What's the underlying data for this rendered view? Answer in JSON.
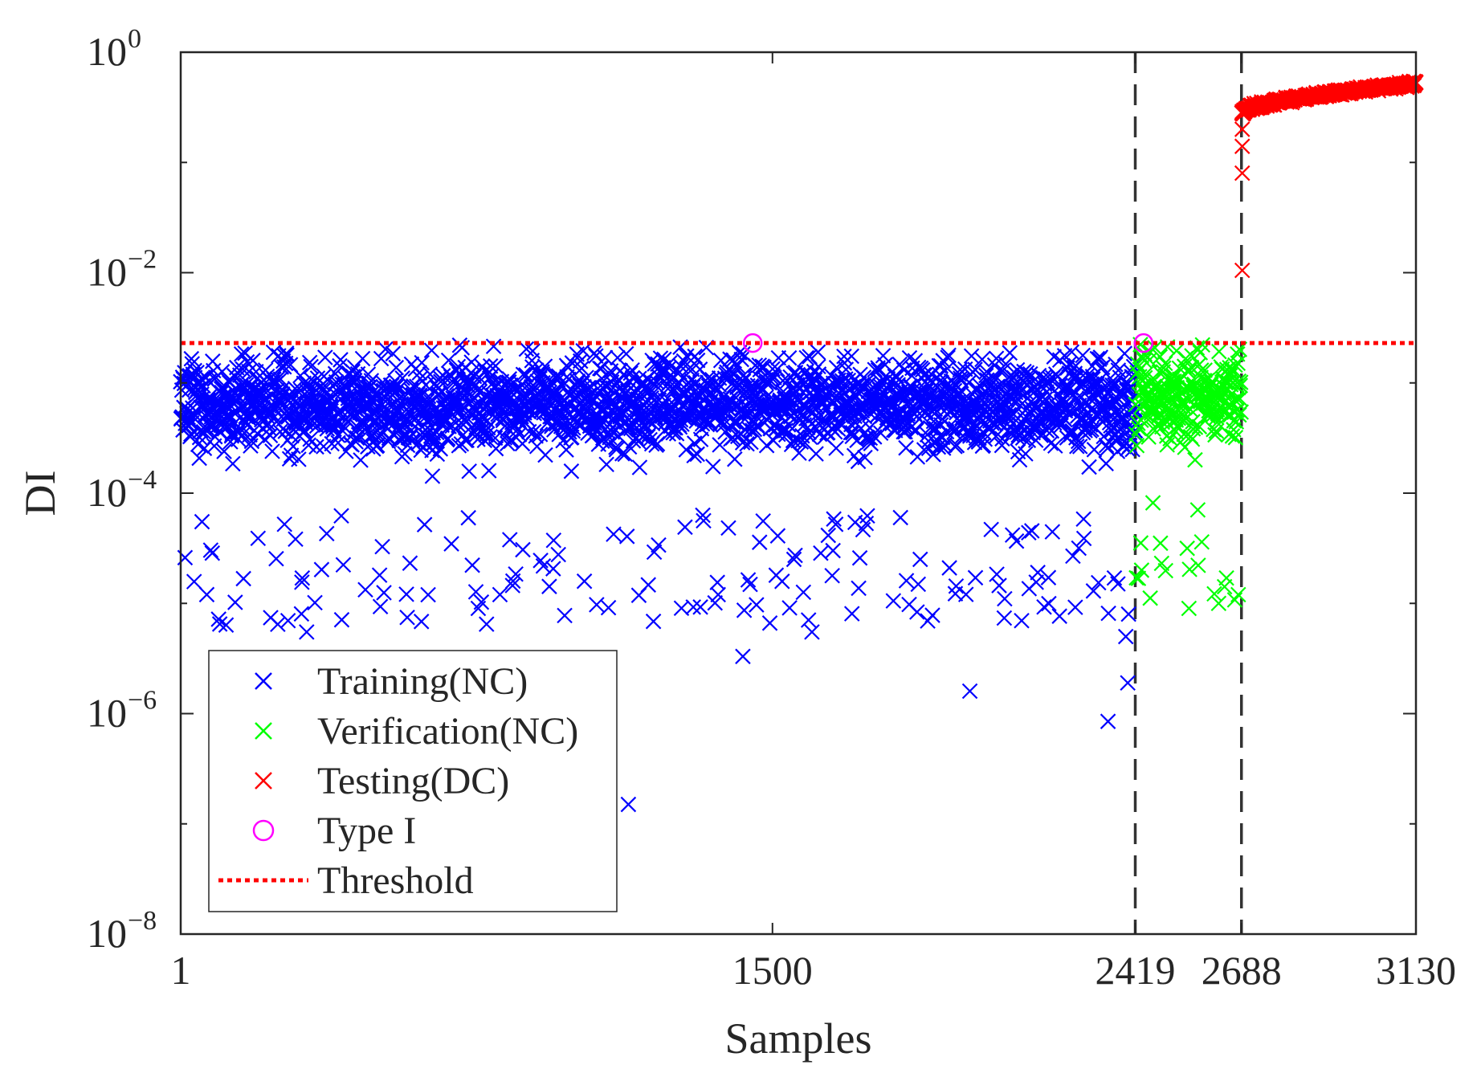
{
  "chart_data": {
    "type": "scatter",
    "title": "",
    "xlabel": "Samples",
    "ylabel": "DI",
    "xlim": [
      1,
      3130
    ],
    "ylim_log10": [
      -8,
      0
    ],
    "y_scale": "log",
    "grid": false,
    "legend_position": "bottom-left",
    "x_ticks": [
      1,
      1500,
      2419,
      2688,
      3130
    ],
    "x_tick_labels": [
      "1",
      "1500",
      "2419",
      "2688",
      "3130"
    ],
    "y_tick_exponents": [
      -8,
      -6,
      -4,
      -2,
      0
    ],
    "y_tick_labels": [
      {
        "base": "10",
        "exp": "−8"
      },
      {
        "base": "10",
        "exp": "−6"
      },
      {
        "base": "10",
        "exp": "−4"
      },
      {
        "base": "10",
        "exp": "−2"
      },
      {
        "base": "10",
        "exp": "0"
      }
    ],
    "threshold": {
      "name": "Threshold",
      "value": 0.0023,
      "color": "#ff0000",
      "style": "dotted"
    },
    "separators": [
      2419,
      2688
    ],
    "series": [
      {
        "name": "Training(NC)",
        "marker": "x",
        "color": "#0000ff",
        "x_range": [
          1,
          2419
        ],
        "typical_range_log10": [
          -4.2,
          -2.7
        ],
        "median_log10": -3.2,
        "approx_points": 2419,
        "outliers": [
          {
            "x": 1135,
            "y": 1.5e-07
          },
          {
            "x": 1425,
            "y": 3.3e-06
          },
          {
            "x": 2000,
            "y": 1.6e-06
          },
          {
            "x": 2350,
            "y": 8.5e-07
          },
          {
            "x": 2400,
            "y": 1.9e-06
          },
          {
            "x": 2395,
            "y": 5e-06
          },
          {
            "x": 100,
            "y": 6.5e-06
          },
          {
            "x": 320,
            "y": 5.5e-06
          },
          {
            "x": 1600,
            "y": 5.5e-06
          }
        ]
      },
      {
        "name": "Verification(NC)",
        "marker": "x",
        "color": "#00ff00",
        "x_range": [
          2420,
          2688
        ],
        "typical_range_log10": [
          -4.0,
          -2.7
        ],
        "median_log10": -3.1,
        "approx_points": 269,
        "outliers": [
          {
            "x": 2435,
            "y": 2e-05
          },
          {
            "x": 2555,
            "y": 9e-06
          },
          {
            "x": 2650,
            "y": 1.7e-05
          },
          {
            "x": 2680,
            "y": 1.2e-05
          }
        ]
      },
      {
        "name": "Testing(DC)",
        "marker": "x",
        "color": "#ff0000",
        "x_range": [
          2689,
          3130
        ],
        "start_value": 0.28,
        "end_value": 0.52,
        "approx_points": 442,
        "onset_points": [
          {
            "x": 2690,
            "y": 0.0105
          },
          {
            "x": 2690,
            "y": 0.08
          },
          {
            "x": 2690,
            "y": 0.14
          },
          {
            "x": 2690,
            "y": 0.2
          }
        ]
      },
      {
        "name": "Type I",
        "marker": "o",
        "color": "#ff00ff",
        "points": [
          {
            "x": 1450,
            "y": 0.0023
          },
          {
            "x": 2440,
            "y": 0.0023
          }
        ]
      }
    ]
  },
  "legend": {
    "items": [
      {
        "label": "Training(NC)",
        "color": "#0000ff",
        "marker": "x"
      },
      {
        "label": "Verification(NC)",
        "color": "#00ff00",
        "marker": "x"
      },
      {
        "label": "Testing(DC)",
        "color": "#ff0000",
        "marker": "x"
      },
      {
        "label": "Type I",
        "color": "#ff00ff",
        "marker": "o"
      },
      {
        "label": "Threshold",
        "color": "#ff0000",
        "marker": "dotted-line"
      }
    ]
  }
}
